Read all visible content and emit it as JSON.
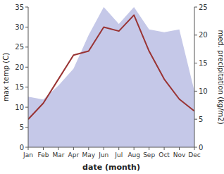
{
  "chart_data": {
    "type": "line",
    "xlabel": "date (month)",
    "ylabel": "max temp (C)",
    "y2label": "med. precipitation (kg/m2)",
    "categories": [
      "Jan",
      "Feb",
      "Mar",
      "Apr",
      "May",
      "Jun",
      "Jul",
      "Aug",
      "Sep",
      "Oct",
      "Nov",
      "Dec"
    ],
    "series": [
      {
        "type": "area",
        "axis": "y2",
        "color": "#c5c8e8",
        "values": [
          9,
          8.5,
          11,
          14,
          20,
          25,
          22,
          25,
          21,
          20.5,
          21,
          10
        ]
      },
      {
        "type": "line",
        "color": "#993333",
        "values": [
          7,
          11,
          17,
          23,
          24,
          30,
          29,
          33,
          24,
          17,
          12,
          9
        ]
      }
    ],
    "ylim": [
      0,
      35
    ],
    "yticks": [
      0,
      5,
      10,
      15,
      20,
      25,
      30,
      35
    ],
    "y2lim": [
      0,
      25
    ],
    "y2ticks": [
      0,
      5,
      10,
      15,
      20,
      25
    ],
    "grid": false
  }
}
